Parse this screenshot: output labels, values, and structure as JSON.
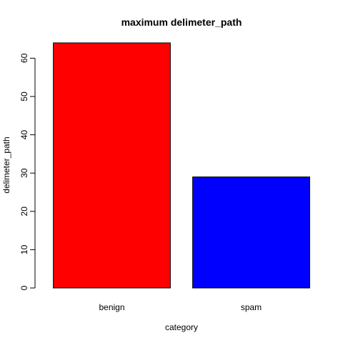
{
  "chart_data": {
    "type": "bar",
    "title": "maximum delimeter_path",
    "xlabel": "category",
    "ylabel": "delimeter_path",
    "categories": [
      "benign",
      "spam"
    ],
    "values": [
      64,
      29
    ],
    "colors": [
      "#ff0000",
      "#0000ff"
    ],
    "ylim": [
      0,
      64
    ],
    "yticks": [
      0,
      10,
      20,
      30,
      40,
      50,
      60
    ],
    "grid": false,
    "legend": "none"
  }
}
